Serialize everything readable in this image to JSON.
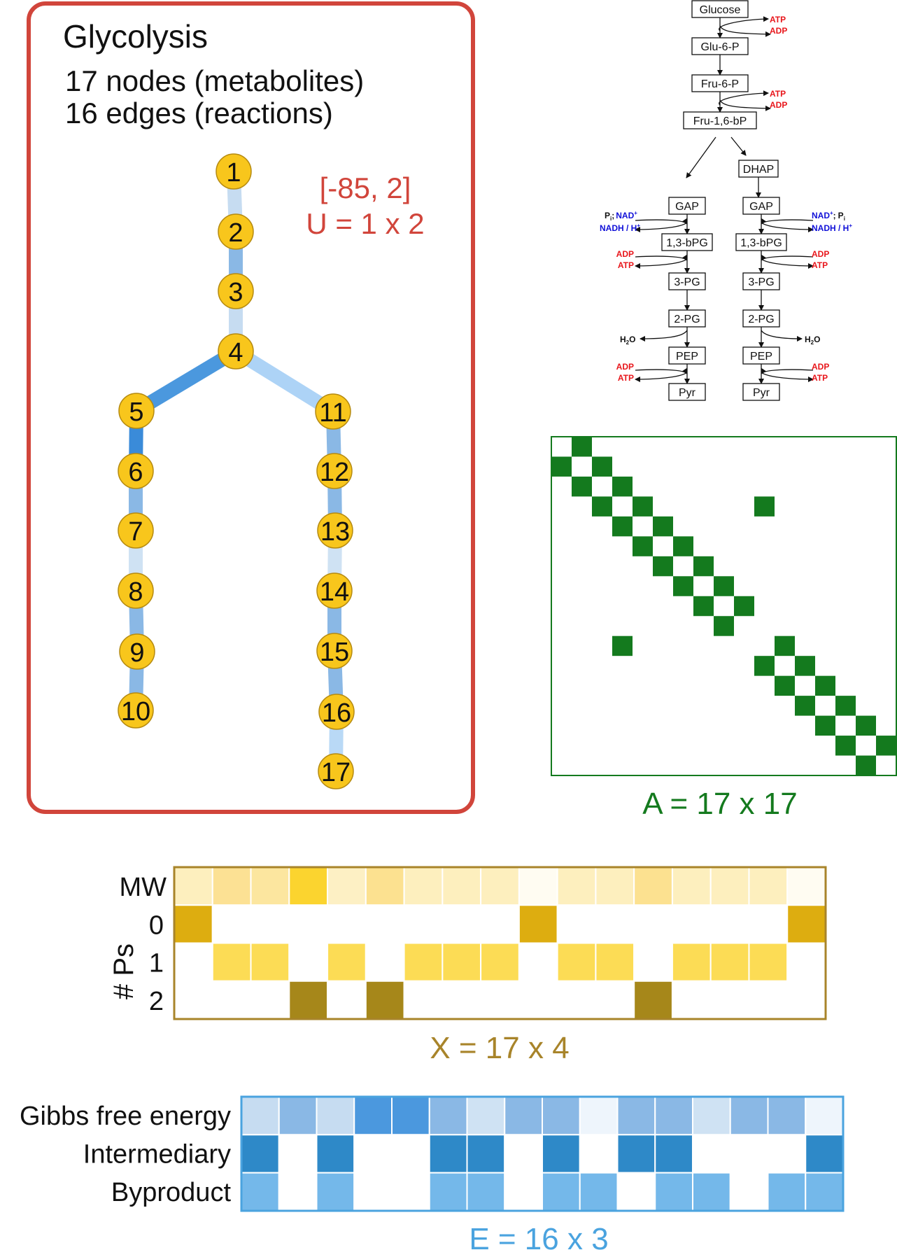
{
  "graph_panel": {
    "title": "Glycolysis",
    "nodes_line": "17 nodes (metabolites)",
    "edges_line": "16 edges (reactions)",
    "u_range": "[-85, 2]",
    "u_label": "U = 1 x 2",
    "frame_color": "#d1453b",
    "node_color": "#f8c61c",
    "nodes": [
      "1",
      "2",
      "3",
      "4",
      "5",
      "6",
      "7",
      "8",
      "9",
      "10",
      "11",
      "12",
      "13",
      "14",
      "15",
      "16",
      "17"
    ],
    "edges": [
      {
        "from": "1",
        "to": "2",
        "color": "#c6dcf1"
      },
      {
        "from": "2",
        "to": "3",
        "color": "#8ab8e5"
      },
      {
        "from": "3",
        "to": "4",
        "color": "#c6dcf1"
      },
      {
        "from": "4",
        "to": "5",
        "color": "#4b98de"
      },
      {
        "from": "4",
        "to": "11",
        "color": "#add3f6"
      },
      {
        "from": "5",
        "to": "6",
        "color": "#3a8bd9"
      },
      {
        "from": "6",
        "to": "7",
        "color": "#8ab8e5"
      },
      {
        "from": "7",
        "to": "8",
        "color": "#cfe2f3"
      },
      {
        "from": "8",
        "to": "9",
        "color": "#8ab8e5"
      },
      {
        "from": "9",
        "to": "10",
        "color": "#8ab8e5"
      },
      {
        "from": "11",
        "to": "12",
        "color": "#8ab8e5"
      },
      {
        "from": "12",
        "to": "13",
        "color": "#8ab8e5"
      },
      {
        "from": "13",
        "to": "14",
        "color": "#cfe2f3"
      },
      {
        "from": "14",
        "to": "15",
        "color": "#8ab8e5"
      },
      {
        "from": "15",
        "to": "16",
        "color": "#8ab8e5"
      },
      {
        "from": "16",
        "to": "17",
        "color": "#b9d9f6"
      }
    ]
  },
  "pathway": {
    "metabolites": {
      "glucose": "Glucose",
      "glu6p": "Glu-6-P",
      "fru6p": "Fru-6-P",
      "fru16bp": "Fru-1,6-bP",
      "dhap": "DHAP",
      "gap": "GAP",
      "bpg13": "1,3-bPG",
      "pg3": "3-PG",
      "pg2": "2-PG",
      "pep": "PEP",
      "pyr": "Pyr"
    },
    "cofactors": {
      "atp": "ATP",
      "adp": "ADP",
      "pi": "P",
      "pi_sub": "i",
      "nad": "NAD",
      "nad_sup": "+",
      "nadh": "NADH / H",
      "h_sup": "+",
      "h2o_h": "H",
      "h2o_2": "2",
      "h2o_o": "O",
      "sep": ";"
    },
    "colors": {
      "energy": "#e8161b",
      "redox": "#1010d8",
      "text": "#111111"
    }
  },
  "adjacency": {
    "label": "A = 17 x 17",
    "color": "#147a1e",
    "size": 17,
    "cells": [
      [
        0,
        1
      ],
      [
        1,
        0
      ],
      [
        1,
        2
      ],
      [
        2,
        1
      ],
      [
        2,
        3
      ],
      [
        3,
        2
      ],
      [
        3,
        4
      ],
      [
        3,
        10
      ],
      [
        4,
        3
      ],
      [
        4,
        5
      ],
      [
        5,
        4
      ],
      [
        5,
        6
      ],
      [
        6,
        5
      ],
      [
        6,
        7
      ],
      [
        7,
        6
      ],
      [
        7,
        8
      ],
      [
        8,
        7
      ],
      [
        8,
        9
      ],
      [
        9,
        8
      ],
      [
        10,
        3
      ],
      [
        10,
        11
      ],
      [
        11,
        10
      ],
      [
        11,
        12
      ],
      [
        12,
        11
      ],
      [
        12,
        13
      ],
      [
        13,
        12
      ],
      [
        13,
        14
      ],
      [
        14,
        13
      ],
      [
        14,
        15
      ],
      [
        15,
        14
      ],
      [
        15,
        16
      ],
      [
        16,
        15
      ]
    ]
  },
  "node_features": {
    "label": "X = 17 x 4",
    "color": "#a8842a",
    "rows": [
      "MW",
      "0",
      "1",
      "2"
    ],
    "y_axis_label": "# Ps",
    "mw_colors": [
      "#fdefbe",
      "#fce194",
      "#fce69f",
      "#fbd42f",
      "#fdf0c4",
      "#fce190",
      "#fdefbe",
      "#fdefbe",
      "#fdefbe",
      "#fffcf2",
      "#fdefbe",
      "#fdefbe",
      "#fce190",
      "#fdefbe",
      "#fdefbe",
      "#fdefbe",
      "#fffcf2"
    ],
    "phosphate_counts": [
      0,
      1,
      1,
      2,
      1,
      2,
      1,
      1,
      1,
      0,
      1,
      1,
      2,
      1,
      1,
      1,
      0
    ],
    "count_colors": {
      "0": "#ddad10",
      "1": "#fcdc55",
      "2": "#a6871a"
    }
  },
  "edge_features": {
    "label": "E = 16 x 3",
    "color": "#4aa3df",
    "rows": [
      "Gibbs free energy",
      "Intermediary",
      "Byproduct"
    ],
    "gibbs_colors": [
      "#c6dcf1",
      "#8ab8e5",
      "#c6dcf1",
      "#4b98de",
      "#4b98de",
      "#8ab8e5",
      "#cfe2f3",
      "#8ab8e5",
      "#8ab8e5",
      "#eef5fc",
      "#8ab8e5",
      "#8ab8e5",
      "#cfe2f3",
      "#8ab8e5",
      "#8ab8e5",
      "#eef5fc"
    ],
    "intermediary": [
      1,
      0,
      1,
      0,
      0,
      1,
      1,
      0,
      1,
      0,
      1,
      1,
      0,
      0,
      0,
      1
    ],
    "byproduct": [
      1,
      0,
      1,
      0,
      0,
      1,
      1,
      0,
      1,
      1,
      0,
      1,
      1,
      0,
      1,
      1
    ],
    "intermediary_color": "#2e89c8",
    "byproduct_color": "#74b8ea"
  }
}
